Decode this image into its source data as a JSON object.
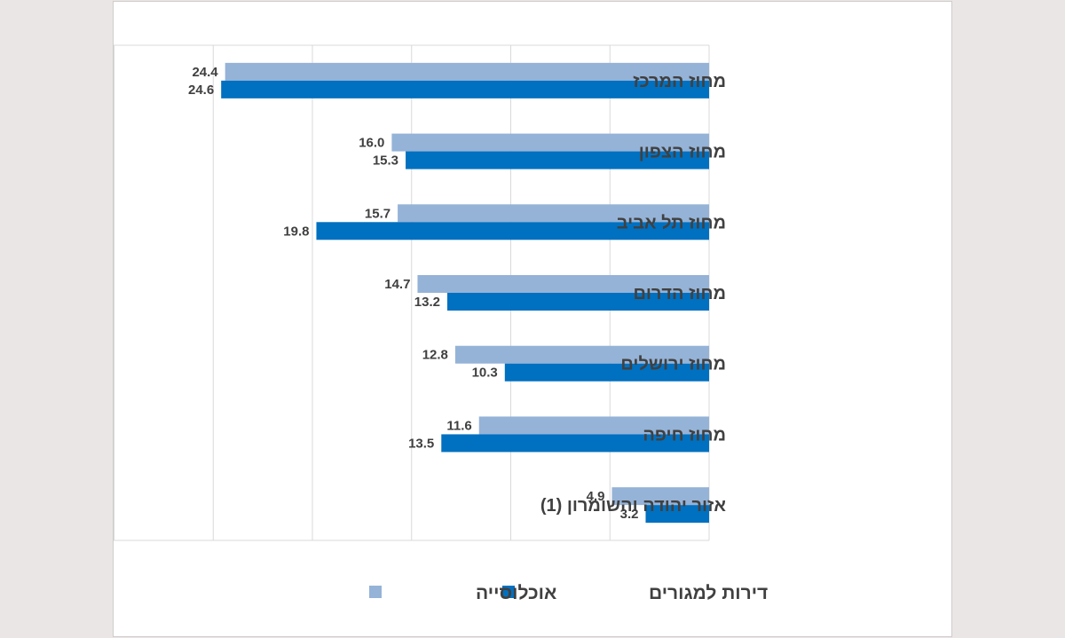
{
  "chart_data": {
    "type": "bar",
    "orientation": "horizontal",
    "direction": "right-to-left",
    "categories": [
      "מחוז המרכז",
      "מחוז הצפון",
      "מחוז תל אביב",
      "מחוז הדרום",
      "מחוז ירושלים",
      "מחוז חיפה",
      "אזור יהודה והשומרון (1)"
    ],
    "series": [
      {
        "name": "אוכלוסייה",
        "color": "#95b3d7",
        "values": [
          24.4,
          16.0,
          15.7,
          14.7,
          12.8,
          11.6,
          4.9
        ]
      },
      {
        "name": "דירות למגורים",
        "color": "#0070c0",
        "values": [
          24.6,
          15.3,
          19.8,
          13.2,
          10.3,
          13.5,
          3.2
        ]
      }
    ],
    "xlim": [
      0,
      30
    ],
    "grid": true,
    "data_labels": true,
    "legend_position": "bottom",
    "title": "",
    "xlabel": "",
    "ylabel": ""
  }
}
